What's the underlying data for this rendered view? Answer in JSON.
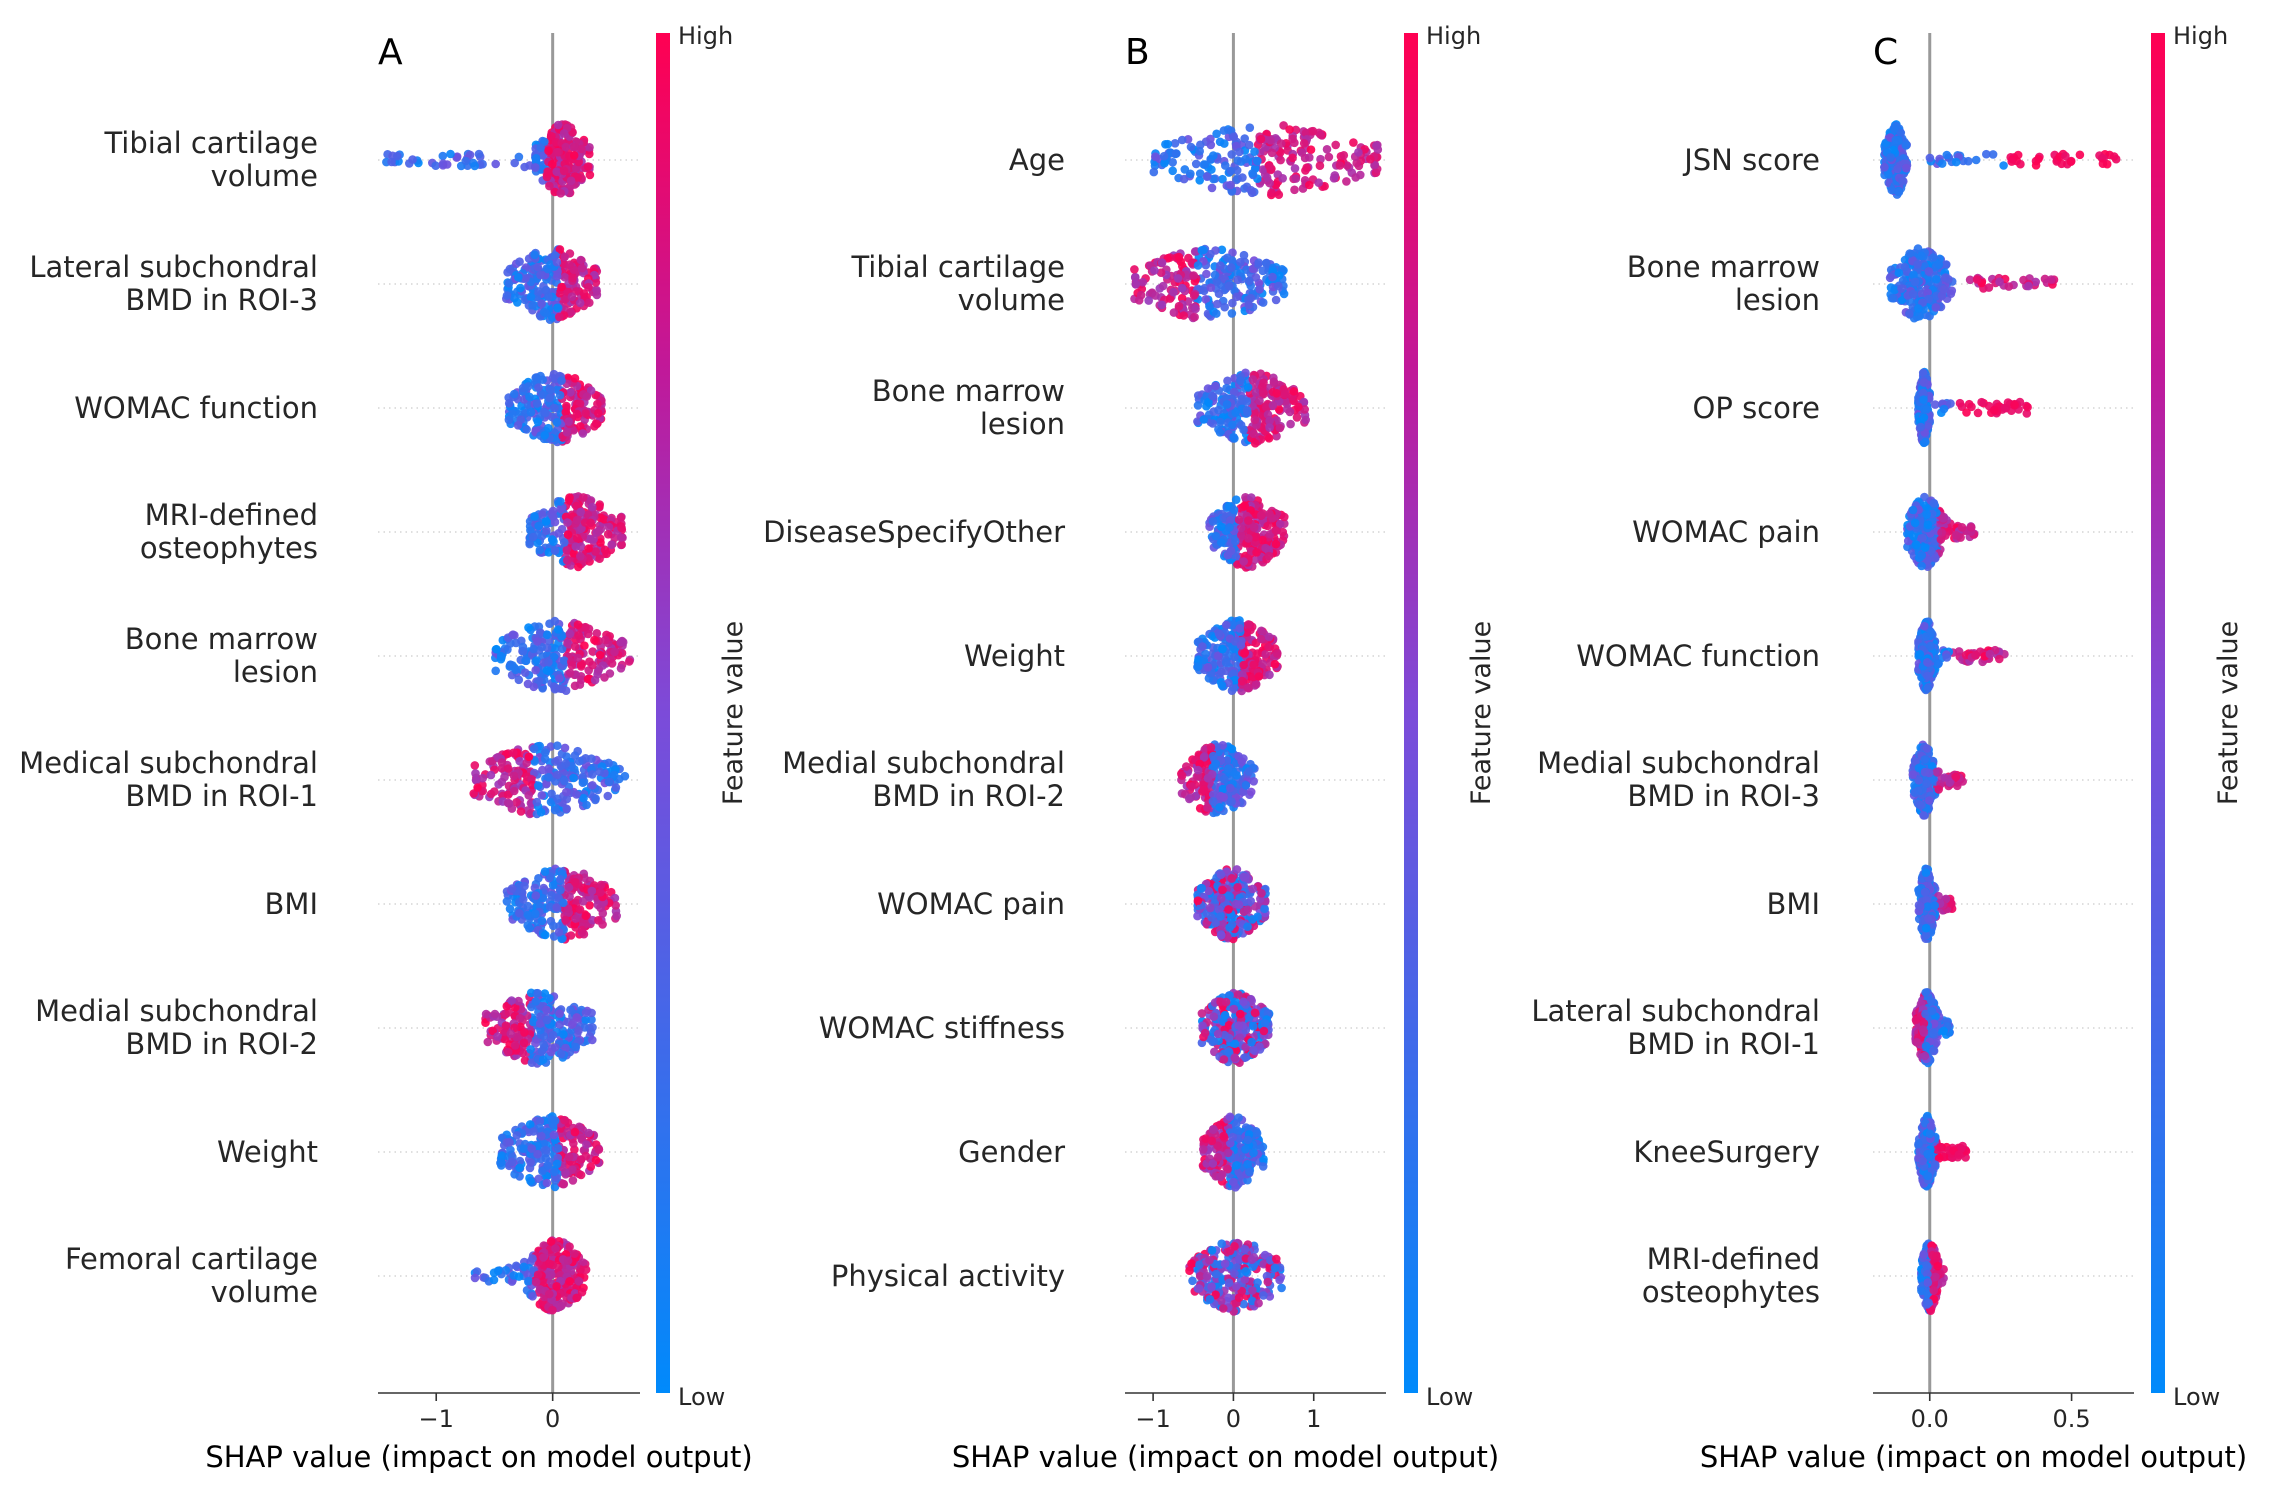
{
  "figure": {
    "colors": {
      "low": "#008afb",
      "high": "#ff0052",
      "zero_line": "#999999",
      "row_line": "#cccccc"
    }
  },
  "chart_data": [
    {
      "type": "scatter",
      "panel_label": "A",
      "xlabel": "SHAP value (impact on model output)",
      "xlim": [
        -1.5,
        0.75
      ],
      "xticks": [
        -1,
        0
      ],
      "xtick_labels": [
        "−1",
        "0"
      ],
      "colorbar": {
        "title": "Feature value",
        "high_label": "High",
        "low_label": "Low"
      },
      "features": [
        {
          "name": "Tibial cartilage volume",
          "lines": [
            "Tibial cartilage",
            "volume"
          ],
          "min": -1.45,
          "max": 0.32,
          "core": [
            -0.15,
            0.32
          ],
          "high_side": "pos",
          "high_min": -0.05,
          "pos_max": 0.32
        },
        {
          "name": "Lateral subchondral BMD in ROI-3",
          "lines": [
            "Lateral subchondral",
            "BMD in ROI-3"
          ],
          "min": -0.45,
          "max": 0.38,
          "core": [
            -0.4,
            0.38
          ],
          "high_side": "pos",
          "high_min": 0.05
        },
        {
          "name": "WOMAC function",
          "lines": [
            "WOMAC function"
          ],
          "min": -0.38,
          "max": 0.42,
          "core": [
            -0.38,
            0.42
          ],
          "high_side": "pos",
          "high_min": 0.08
        },
        {
          "name": "MRI-defined osteophytes",
          "lines": [
            "MRI-defined",
            "osteophytes"
          ],
          "min": -0.2,
          "max": 0.6,
          "core": [
            -0.2,
            0.6
          ],
          "high_side": "pos",
          "high_min": 0.1
        },
        {
          "name": "Bone marrow lesion",
          "lines": [
            "Bone marrow",
            "lesion"
          ],
          "min": -0.5,
          "max": 0.68,
          "core": [
            -0.5,
            0.6
          ],
          "high_side": "pos",
          "high_min": 0.12
        },
        {
          "name": "Medical subchondral BMD in ROI-1",
          "lines": [
            "Medical subchondral",
            "BMD in ROI-1"
          ],
          "min": -0.68,
          "max": 0.65,
          "core": [
            -0.68,
            0.55
          ],
          "high_side": "neg",
          "high_min": -0.68
        },
        {
          "name": "BMI",
          "lines": [
            "BMI"
          ],
          "min": -0.4,
          "max": 0.55,
          "core": [
            -0.4,
            0.55
          ],
          "high_side": "pos",
          "high_min": 0.1
        },
        {
          "name": "Medial subchondral BMD in ROI-2",
          "lines": [
            "Medial subchondral",
            "BMD in ROI-2"
          ],
          "min": -0.58,
          "max": 0.35,
          "core": [
            -0.58,
            0.35
          ],
          "high_side": "neg",
          "high_min": -0.58
        },
        {
          "name": "Weight",
          "lines": [
            "Weight"
          ],
          "min": -0.45,
          "max": 0.4,
          "core": [
            -0.45,
            0.4
          ],
          "high_side": "pos",
          "high_min": 0.05
        },
        {
          "name": "Femoral cartilage volume",
          "lines": [
            "Femoral cartilage",
            "volume"
          ],
          "min": -0.72,
          "max": 0.3,
          "core": [
            -0.25,
            0.3
          ],
          "high_side": "pos",
          "high_min": -0.15
        }
      ]
    },
    {
      "type": "scatter",
      "panel_label": "B",
      "xlabel": "SHAP value (impact on model output)",
      "xlim": [
        -1.35,
        1.9
      ],
      "xticks": [
        -1,
        0,
        1
      ],
      "xtick_labels": [
        "−1",
        "0",
        "1"
      ],
      "colorbar": {
        "title": "Feature value",
        "high_label": "High",
        "low_label": "Low"
      },
      "features": [
        {
          "name": "Age",
          "lines": [
            "Age"
          ],
          "min": -1.0,
          "max": 1.8,
          "core": [
            -1.0,
            1.8
          ],
          "high_side": "pos",
          "high_min": 0.3
        },
        {
          "name": "Tibial cartilage volume",
          "lines": [
            "Tibial cartilage",
            "volume"
          ],
          "min": -1.25,
          "max": 0.65,
          "core": [
            -1.25,
            0.65
          ],
          "high_side": "neg",
          "high_min": -1.25
        },
        {
          "name": "Bone marrow lesion",
          "lines": [
            "Bone marrow",
            "lesion"
          ],
          "min": -0.45,
          "max": 0.9,
          "core": [
            -0.45,
            0.9
          ],
          "high_side": "pos",
          "high_min": 0.2
        },
        {
          "name": "DiseaseSpecifyOther",
          "lines": [
            "DiseaseSpecifyOther"
          ],
          "min": -0.3,
          "max": 0.65,
          "core": [
            -0.3,
            0.65
          ],
          "high_side": "pos",
          "high_min": 0.05
        },
        {
          "name": "Weight",
          "lines": [
            "Weight"
          ],
          "min": -0.45,
          "max": 0.55,
          "core": [
            -0.45,
            0.55
          ],
          "high_side": "pos",
          "high_min": 0.1
        },
        {
          "name": "Medial subchondral BMD in ROI-2",
          "lines": [
            "Medial subchondral",
            "BMD in ROI-2"
          ],
          "min": -0.65,
          "max": 0.28,
          "core": [
            -0.65,
            0.28
          ],
          "high_side": "neg",
          "high_min": -0.65
        },
        {
          "name": "WOMAC pain",
          "lines": [
            "WOMAC pain"
          ],
          "min": -0.45,
          "max": 0.4,
          "core": [
            -0.45,
            0.4
          ],
          "high_side": "mix",
          "high_min": -0.45
        },
        {
          "name": "WOMAC stiffness",
          "lines": [
            "WOMAC stiffness"
          ],
          "min": -0.4,
          "max": 0.45,
          "core": [
            -0.4,
            0.45
          ],
          "high_side": "mix",
          "high_min": -0.4
        },
        {
          "name": "Gender",
          "lines": [
            "Gender"
          ],
          "min": -0.38,
          "max": 0.38,
          "core": [
            -0.38,
            0.38
          ],
          "high_side": "neg",
          "high_min": -0.38
        },
        {
          "name": "Physical activity",
          "lines": [
            "Physical activity"
          ],
          "min": -0.55,
          "max": 0.6,
          "core": [
            -0.55,
            0.6
          ],
          "high_side": "mix",
          "high_min": -0.55
        }
      ]
    },
    {
      "type": "scatter",
      "panel_label": "C",
      "xlabel": "SHAP value (impact on model output)",
      "xlim": [
        -0.2,
        0.72
      ],
      "xticks": [
        0.0,
        0.5
      ],
      "xtick_labels": [
        "0.0",
        "0.5"
      ],
      "colorbar": {
        "title": "Feature value",
        "high_label": "High",
        "low_label": "Low"
      },
      "features": [
        {
          "name": "JSN score",
          "lines": [
            "JSN score"
          ],
          "min": -0.16,
          "max": 0.66,
          "core": [
            -0.16,
            -0.08
          ],
          "high_side": "sep",
          "high_min": 0.28
        },
        {
          "name": "Bone marrow lesion",
          "lines": [
            "Bone marrow",
            "lesion"
          ],
          "min": -0.14,
          "max": 0.45,
          "core": [
            -0.14,
            0.08
          ],
          "high_side": "pos",
          "high_min": 0.1
        },
        {
          "name": "OP score",
          "lines": [
            "OP score"
          ],
          "min": -0.04,
          "max": 0.35,
          "core": [
            -0.04,
            0.0
          ],
          "high_side": "sep",
          "high_min": 0.1
        },
        {
          "name": "WOMAC pain",
          "lines": [
            "WOMAC pain"
          ],
          "min": -0.08,
          "max": 0.16,
          "core": [
            -0.08,
            0.05
          ],
          "high_side": "pos",
          "high_min": 0.03
        },
        {
          "name": "WOMAC function",
          "lines": [
            "WOMAC function"
          ],
          "min": -0.04,
          "max": 0.27,
          "core": [
            -0.04,
            0.02
          ],
          "high_side": "pos",
          "high_min": 0.08
        },
        {
          "name": "Medial subchondral BMD in ROI-3",
          "lines": [
            "Medial subchondral",
            "BMD in ROI-3"
          ],
          "min": -0.06,
          "max": 0.12,
          "core": [
            -0.06,
            0.02
          ],
          "high_side": "pos",
          "high_min": 0.02
        },
        {
          "name": "BMI",
          "lines": [
            "BMI"
          ],
          "min": -0.04,
          "max": 0.08,
          "core": [
            -0.04,
            0.02
          ],
          "high_side": "pos",
          "high_min": 0.02
        },
        {
          "name": "Lateral subchondral BMD in ROI-1",
          "lines": [
            "Lateral subchondral",
            "BMD in ROI-1"
          ],
          "min": -0.05,
          "max": 0.07,
          "core": [
            -0.05,
            0.03
          ],
          "high_side": "neg",
          "high_min": -0.05
        },
        {
          "name": "KneeSurgery",
          "lines": [
            "KneeSurgery"
          ],
          "min": -0.04,
          "max": 0.13,
          "core": [
            -0.04,
            0.02
          ],
          "high_side": "sep",
          "high_min": 0.02
        },
        {
          "name": "MRI-defined osteophytes",
          "lines": [
            "MRI-defined",
            "osteophytes"
          ],
          "min": -0.03,
          "max": 0.05,
          "core": [
            -0.03,
            0.03
          ],
          "high_side": "pos",
          "high_min": 0.0
        }
      ]
    }
  ]
}
